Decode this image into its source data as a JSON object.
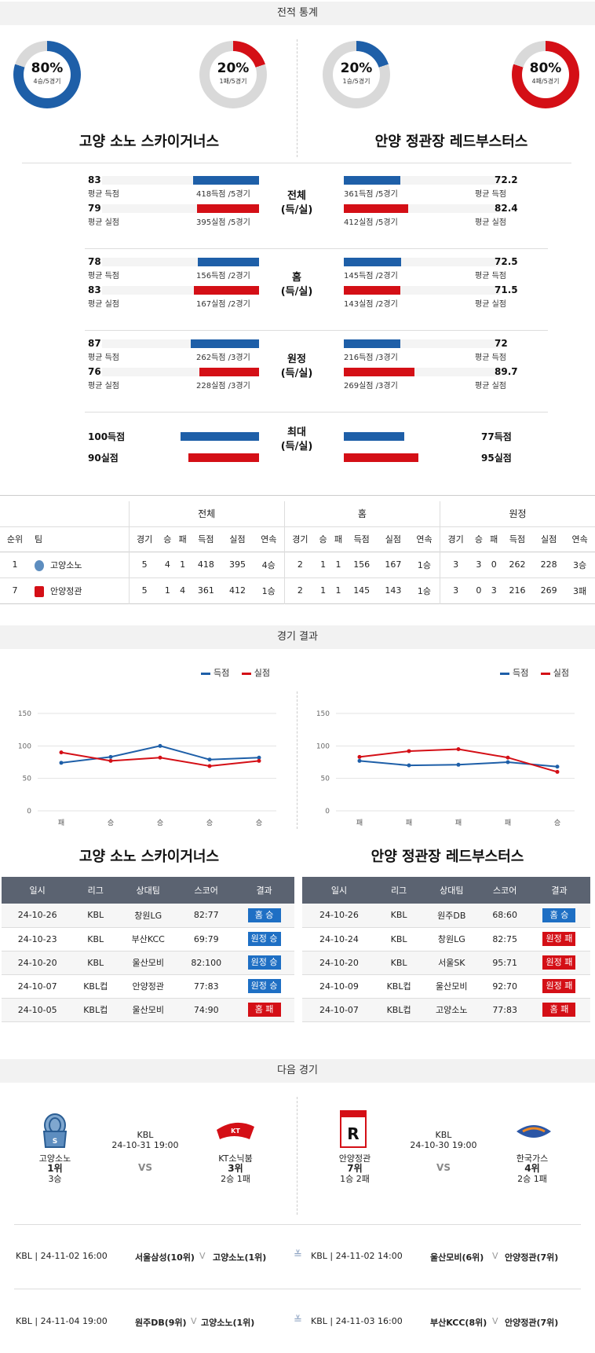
{
  "sections": {
    "record_stats": "전적 통계",
    "game_results": "경기 결과",
    "next_game": "다음 경기"
  },
  "donuts": [
    {
      "pct": "80%",
      "sub": "4승/5경기",
      "value": 0.8,
      "color": "#1e5fa8"
    },
    {
      "pct": "20%",
      "sub": "1패/5경기",
      "value": 0.2,
      "color": "#d40f16"
    },
    {
      "pct": "20%",
      "sub": "1승/5경기",
      "value": 0.2,
      "color": "#1e5fa8"
    },
    {
      "pct": "80%",
      "sub": "4패/5경기",
      "value": 0.8,
      "color": "#d40f16"
    }
  ],
  "teams": {
    "left": "고양 소노 스카이거너스",
    "right": "안양 정관장 레드부스터스"
  },
  "stat_groups": [
    {
      "cat1": "전체",
      "cat2": "(득/실)",
      "left": [
        {
          "value": "83.6",
          "label": "평균 득점",
          "detail": "418득점 /5경기",
          "ratio": 0.418,
          "color": "blue"
        },
        {
          "value": "79",
          "label": "평균 실점",
          "detail": "395실점 /5경기",
          "ratio": 0.395,
          "color": "red"
        }
      ],
      "right": [
        {
          "value": "72.2",
          "label": "평균 득점",
          "detail": "361득점 /5경기",
          "ratio": 0.361,
          "color": "blue"
        },
        {
          "value": "82.4",
          "label": "평균 실점",
          "detail": "412실점 /5경기",
          "ratio": 0.412,
          "color": "red"
        }
      ]
    },
    {
      "cat1": "홈",
      "cat2": "(득/실)",
      "left": [
        {
          "value": "78",
          "label": "평균 득점",
          "detail": "156득점 /2경기",
          "ratio": 0.39,
          "color": "blue"
        },
        {
          "value": "83.5",
          "label": "평균 실점",
          "detail": "167실점 /2경기",
          "ratio": 0.4175,
          "color": "red"
        }
      ],
      "right": [
        {
          "value": "72.5",
          "label": "평균 득점",
          "detail": "145득점 /2경기",
          "ratio": 0.3625,
          "color": "blue"
        },
        {
          "value": "71.5",
          "label": "평균 실점",
          "detail": "143실점 /2경기",
          "ratio": 0.3575,
          "color": "red"
        }
      ]
    },
    {
      "cat1": "원정",
      "cat2": "(득/실)",
      "left": [
        {
          "value": "87.3",
          "label": "평균 득점",
          "detail": "262득점 /3경기",
          "ratio": 0.4366,
          "color": "blue"
        },
        {
          "value": "76",
          "label": "평균 실점",
          "detail": "228실점 /3경기",
          "ratio": 0.38,
          "color": "red"
        }
      ],
      "right": [
        {
          "value": "72",
          "label": "평균 득점",
          "detail": "216득점 /3경기",
          "ratio": 0.36,
          "color": "blue"
        },
        {
          "value": "89.7",
          "label": "평균 실점",
          "detail": "269실점 /3경기",
          "ratio": 0.4483,
          "color": "red"
        }
      ]
    }
  ],
  "max_group": {
    "cat1": "최대",
    "cat2": "(득/실)",
    "left": [
      {
        "value": "100득점",
        "ratio": 0.5,
        "color": "blue"
      },
      {
        "value": "90실점",
        "ratio": 0.45,
        "color": "red"
      }
    ],
    "right": [
      {
        "value": "77득점",
        "ratio": 0.385,
        "color": "blue"
      },
      {
        "value": "95실점",
        "ratio": 0.475,
        "color": "red"
      }
    ]
  },
  "standings": {
    "groups": [
      "전체",
      "홈",
      "원정"
    ],
    "headers": [
      "순위",
      "팀",
      "경기",
      "승",
      "패",
      "득점",
      "실점",
      "연속",
      "경기",
      "승",
      "패",
      "득점",
      "실점",
      "연속",
      "경기",
      "승",
      "패",
      "득점",
      "실점",
      "연속"
    ],
    "rows": [
      [
        "1",
        "고양소노",
        "5",
        "4",
        "1",
        "418",
        "395",
        "4승",
        "2",
        "1",
        "1",
        "156",
        "167",
        "1승",
        "3",
        "3",
        "0",
        "262",
        "228",
        "3승"
      ],
      [
        "7",
        "안양정관",
        "5",
        "1",
        "4",
        "361",
        "412",
        "1승",
        "2",
        "1",
        "1",
        "145",
        "143",
        "1승",
        "3",
        "0",
        "3",
        "216",
        "269",
        "3패"
      ]
    ]
  },
  "chart_data": [
    {
      "type": "line",
      "categories": [
        "패",
        "승",
        "승",
        "승",
        "승"
      ],
      "series": [
        {
          "name": "득점",
          "values": [
            74,
            83,
            100,
            79,
            82
          ],
          "color": "#1e5fa8"
        },
        {
          "name": "실점",
          "values": [
            90,
            77,
            82,
            69,
            77
          ],
          "color": "#d40f16"
        }
      ],
      "yticks": [
        0,
        50,
        100,
        150
      ],
      "ylim": [
        0,
        150
      ],
      "grid": true,
      "legend": "top-right"
    },
    {
      "type": "line",
      "categories": [
        "패",
        "패",
        "패",
        "패",
        "승"
      ],
      "series": [
        {
          "name": "득점",
          "values": [
            77,
            70,
            71,
            75,
            68
          ],
          "color": "#1e5fa8"
        },
        {
          "name": "실점",
          "values": [
            83,
            92,
            95,
            82,
            60
          ],
          "color": "#d40f16"
        }
      ],
      "yticks": [
        0,
        50,
        100,
        150
      ],
      "ylim": [
        0,
        150
      ],
      "grid": true,
      "legend": "top-right"
    }
  ],
  "results_headers": [
    "일시",
    "리그",
    "상대팀",
    "스코어",
    "결과"
  ],
  "results_left": [
    [
      "24-10-26",
      "KBL",
      "창원LG",
      "82:77",
      "홈 승",
      "blue"
    ],
    [
      "24-10-23",
      "KBL",
      "부산KCC",
      "69:79",
      "원정 승",
      "blue"
    ],
    [
      "24-10-20",
      "KBL",
      "울산모비",
      "82:100",
      "원정 승",
      "blue"
    ],
    [
      "24-10-07",
      "KBL컵",
      "안양정관",
      "77:83",
      "원정 승",
      "blue"
    ],
    [
      "24-10-05",
      "KBL컵",
      "울산모비",
      "74:90",
      "홈 패",
      "red"
    ]
  ],
  "results_right": [
    [
      "24-10-26",
      "KBL",
      "원주DB",
      "68:60",
      "홈 승",
      "blue"
    ],
    [
      "24-10-24",
      "KBL",
      "창원LG",
      "82:75",
      "원정 패",
      "red"
    ],
    [
      "24-10-20",
      "KBL",
      "서울SK",
      "95:71",
      "원정 패",
      "red"
    ],
    [
      "24-10-09",
      "KBL컵",
      "울산모비",
      "92:70",
      "원정 패",
      "red"
    ],
    [
      "24-10-07",
      "KBL컵",
      "고양소노",
      "77:83",
      "홈 패",
      "red"
    ]
  ],
  "next_left": {
    "home": {
      "name": "고양소노",
      "rank": "1위",
      "streak": "3승"
    },
    "league": "KBL",
    "datetime": "24-10-31 19:00",
    "vs": "VS",
    "away": {
      "name": "KT소닉붐",
      "rank": "3위",
      "streak": "2승 1패"
    }
  },
  "next_right": {
    "home": {
      "name": "안양정관",
      "rank": "7위",
      "streak": "1승 2패"
    },
    "league": "KBL",
    "datetime": "24-10-30 19:00",
    "vs": "VS",
    "away": {
      "name": "한국가스",
      "rank": "4위",
      "streak": "2승 1패"
    }
  },
  "upcoming": [
    {
      "left_info": "KBL | 24-11-02 16:00",
      "left_match": "서울삼성(10위)",
      "left_team": "고양소노(1위)",
      "right_info": "KBL | 24-11-02 14:00",
      "right_match": "울산모비(6위)",
      "right_team": "안양정관(7위)"
    },
    {
      "left_info": "KBL | 24-11-04 19:00",
      "left_match": "원주DB(9위)",
      "left_team": "고양소노(1위)",
      "right_info": "KBL | 24-11-03 16:00",
      "right_match": "부산KCC(8위)",
      "right_team": "안양정관(7위)"
    }
  ]
}
